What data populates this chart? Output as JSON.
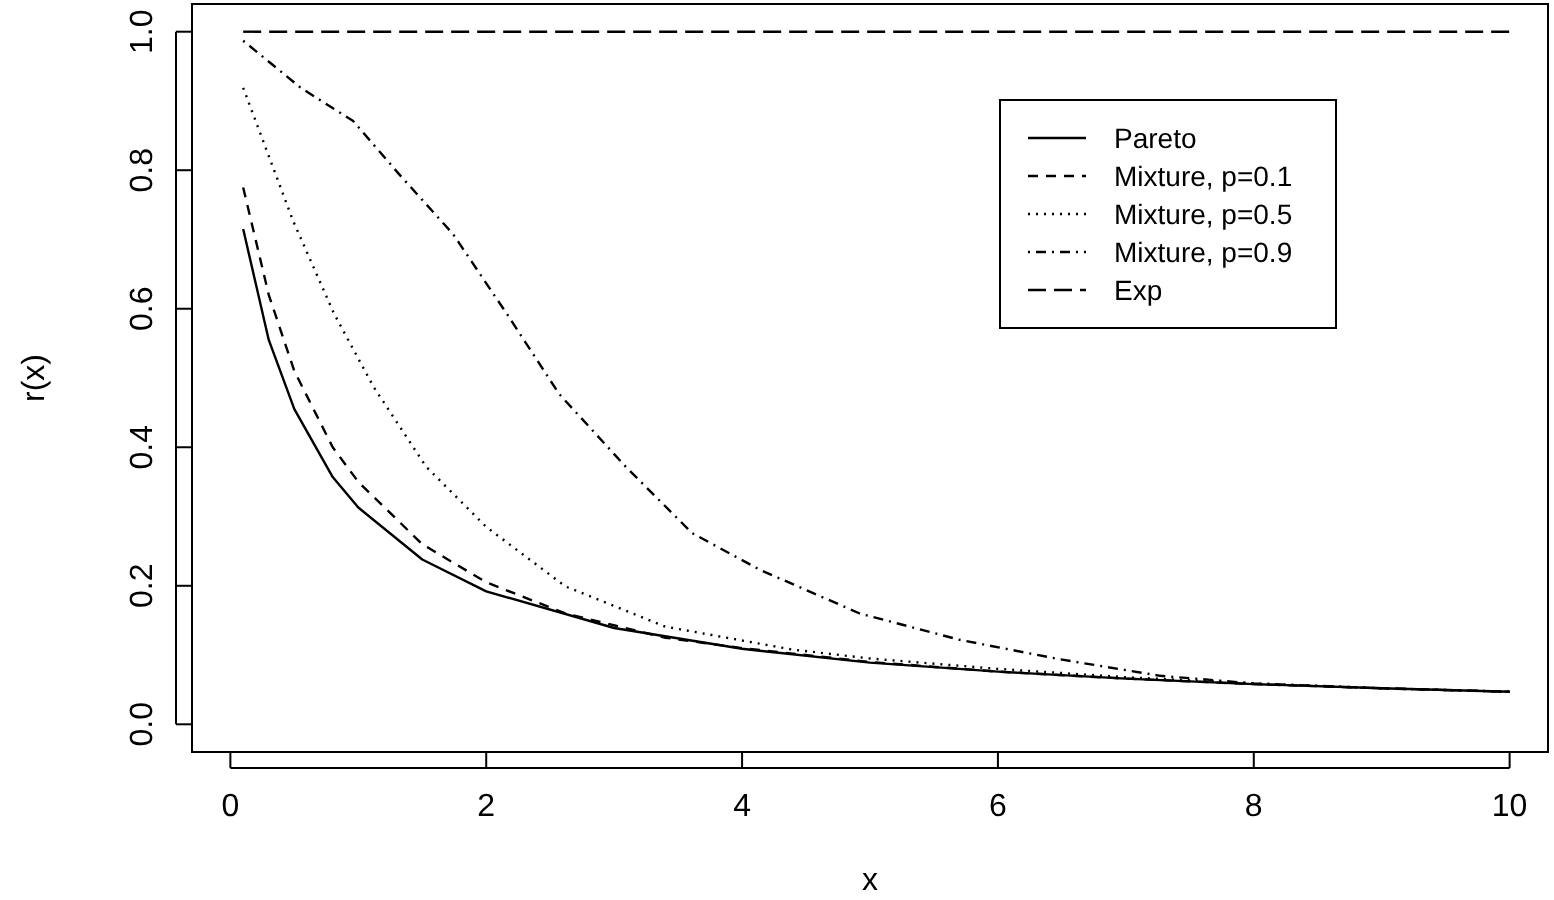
{
  "chart_data": {
    "type": "line",
    "xlabel": "x",
    "ylabel": "r(x)",
    "xlim": [
      -0.3,
      10.3
    ],
    "ylim": [
      -0.04,
      1.04
    ],
    "xticks": [
      0,
      2,
      4,
      6,
      8,
      10
    ],
    "yticks": [
      {
        "value": 0,
        "label": "0.0"
      },
      {
        "value": 0.2,
        "label": "0.2"
      },
      {
        "value": 0.4,
        "label": "0.4"
      },
      {
        "value": 0.6,
        "label": "0.6"
      },
      {
        "value": 0.8,
        "label": "0.8"
      },
      {
        "value": 1,
        "label": "1.0"
      }
    ],
    "legend": "top right",
    "grid": false,
    "series": [
      {
        "name": "Pareto",
        "color": "#000000",
        "line_style": "solid",
        "x": [
          0.1,
          0.3,
          0.5,
          0.8,
          1,
          1.5,
          2,
          3,
          4,
          5,
          6,
          7,
          8,
          9,
          10
        ],
        "values": [
          0.715,
          0.555,
          0.455,
          0.357,
          0.313,
          0.238,
          0.192,
          0.139,
          0.109,
          0.089,
          0.076,
          0.066,
          0.058,
          0.052,
          0.047
        ]
      },
      {
        "name": "Mixture, p=0.1",
        "color": "#000000",
        "line_style": "dashed",
        "x": [
          0.1,
          0.3,
          0.5,
          0.8,
          1,
          1.5,
          2,
          2.62,
          3.4,
          4,
          5,
          6,
          7,
          8,
          9,
          10
        ],
        "values": [
          0.775,
          0.62,
          0.51,
          0.4,
          0.35,
          0.26,
          0.205,
          0.16,
          0.125,
          0.11,
          0.09,
          0.076,
          0.066,
          0.058,
          0.052,
          0.047
        ]
      },
      {
        "name": "Mixture, p=0.5",
        "color": "#000000",
        "line_style": "dotted",
        "x": [
          0.1,
          0.49,
          0.81,
          1.12,
          1.53,
          2,
          2.62,
          3.4,
          4.39,
          5,
          6,
          7,
          8,
          9,
          10
        ],
        "values": [
          0.919,
          0.727,
          0.593,
          0.487,
          0.372,
          0.285,
          0.199,
          0.141,
          0.108,
          0.095,
          0.08,
          0.068,
          0.059,
          0.052,
          0.047
        ]
      },
      {
        "name": "Mixture, p=0.9",
        "color": "#000000",
        "line_style": "dashdot",
        "x": [
          0.1,
          0.55,
          0.96,
          1.32,
          1.74,
          2.16,
          2.57,
          3.09,
          3.61,
          4.14,
          4.92,
          5.7,
          6.48,
          7.27,
          8,
          9,
          10
        ],
        "values": [
          0.987,
          0.919,
          0.871,
          0.794,
          0.708,
          0.593,
          0.477,
          0.372,
          0.276,
          0.223,
          0.16,
          0.122,
          0.094,
          0.07,
          0.059,
          0.052,
          0.047
        ]
      },
      {
        "name": "Exp",
        "color": "#000000",
        "line_style": "longdash",
        "x": [
          0.1,
          10
        ],
        "values": [
          1,
          1
        ]
      }
    ]
  }
}
